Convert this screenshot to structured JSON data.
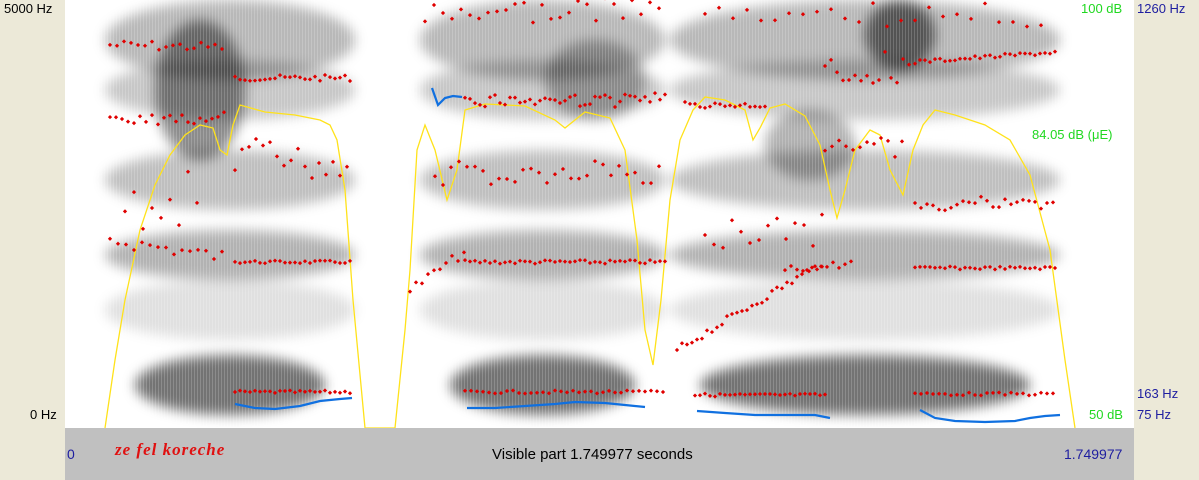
{
  "left_axis": {
    "top_label": "5000 Hz",
    "bottom_label": "0 Hz"
  },
  "right_axis": {
    "intensity_top": "100 dB",
    "intensity_mid": "84.05 dB (μE)",
    "intensity_bottom": "50 dB",
    "pitch_top": "1260 Hz",
    "pitch_cursor": "163 Hz",
    "pitch_bottom": "75 Hz"
  },
  "bottom_bar": {
    "transcript": "ze fel koreche",
    "visible_part": "Visible part 1.749977 seconds",
    "time_start": "0",
    "time_end": "1.749977"
  },
  "colors": {
    "formant": "#E00000",
    "intensity": "#FFE21A",
    "pitch": "#1070E0",
    "green_label": "#21D821",
    "blue_label": "#1E1EA0",
    "transcript": "#E01010"
  }
}
